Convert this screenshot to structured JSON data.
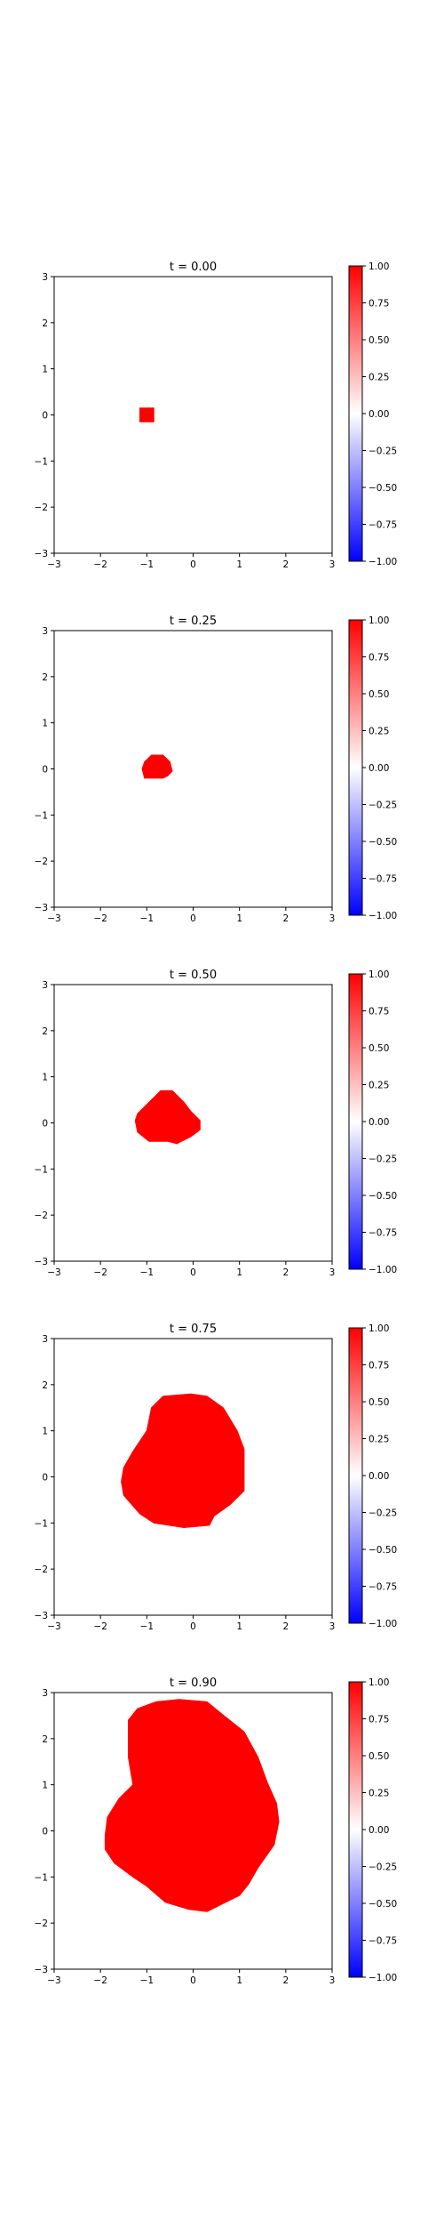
{
  "colors": {
    "positive": "#ff0000",
    "neutral": "#ffffff",
    "negative": "#0000ff",
    "axis": "#000000",
    "background": "#ffffff"
  },
  "chart_data": [
    {
      "type": "heatmap",
      "title": "t = 0.00",
      "xlim": [
        -3,
        3
      ],
      "ylim": [
        -3,
        3
      ],
      "xticks": [
        -3,
        -2,
        -1,
        0,
        1,
        2,
        3
      ],
      "yticks": [
        -3,
        -2,
        -1,
        0,
        1,
        2,
        3
      ],
      "colormap": "bwr",
      "colorbar_range": [
        -1,
        1
      ],
      "colorbar_ticks": [
        "1.00",
        "0.75",
        "0.50",
        "0.25",
        "0.00",
        "−0.25",
        "−0.50",
        "−0.75",
        "−1.00"
      ],
      "grid": false,
      "regions": [
        {
          "value": 1.0,
          "boundary": [
            [
              -1.15,
              0.15
            ],
            [
              -0.85,
              0.15
            ],
            [
              -0.85,
              -0.15
            ],
            [
              -1.15,
              -0.15
            ]
          ]
        }
      ]
    },
    {
      "type": "heatmap",
      "title": "t = 0.25",
      "xlim": [
        -3,
        3
      ],
      "ylim": [
        -3,
        3
      ],
      "xticks": [
        -3,
        -2,
        -1,
        0,
        1,
        2,
        3
      ],
      "yticks": [
        -3,
        -2,
        -1,
        0,
        1,
        2,
        3
      ],
      "colormap": "bwr",
      "colorbar_range": [
        -1,
        1
      ],
      "colorbar_ticks": [
        "1.00",
        "0.75",
        "0.50",
        "0.25",
        "0.00",
        "−0.25",
        "−0.50",
        "−0.75",
        "−1.00"
      ],
      "grid": false,
      "regions": [
        {
          "value": 1.0,
          "boundary": [
            [
              -1.05,
              0.15
            ],
            [
              -0.9,
              0.3
            ],
            [
              -0.65,
              0.3
            ],
            [
              -0.5,
              0.15
            ],
            [
              -0.45,
              -0.05
            ],
            [
              -0.55,
              -0.15
            ],
            [
              -0.65,
              -0.2
            ],
            [
              -1.05,
              -0.2
            ],
            [
              -1.1,
              0.0
            ]
          ]
        }
      ]
    },
    {
      "type": "heatmap",
      "title": "t = 0.50",
      "xlim": [
        -3,
        3
      ],
      "ylim": [
        -3,
        3
      ],
      "xticks": [
        -3,
        -2,
        -1,
        0,
        1,
        2,
        3
      ],
      "yticks": [
        -3,
        -2,
        -1,
        0,
        1,
        2,
        3
      ],
      "colormap": "bwr",
      "colorbar_range": [
        -1,
        1
      ],
      "colorbar_ticks": [
        "1.00",
        "0.75",
        "0.50",
        "0.25",
        "0.00",
        "−0.25",
        "−0.50",
        "−0.75",
        "−1.00"
      ],
      "grid": false,
      "regions": [
        {
          "value": 1.0,
          "boundary": [
            [
              -1.2,
              0.2
            ],
            [
              -0.95,
              0.45
            ],
            [
              -0.7,
              0.7
            ],
            [
              -0.45,
              0.7
            ],
            [
              -0.2,
              0.45
            ],
            [
              -0.05,
              0.25
            ],
            [
              0.15,
              0.05
            ],
            [
              0.15,
              -0.15
            ],
            [
              -0.05,
              -0.3
            ],
            [
              -0.35,
              -0.45
            ],
            [
              -0.55,
              -0.4
            ],
            [
              -0.95,
              -0.4
            ],
            [
              -1.2,
              -0.2
            ],
            [
              -1.25,
              0.05
            ]
          ]
        }
      ]
    },
    {
      "type": "heatmap",
      "title": "t = 0.75",
      "xlim": [
        -3,
        3
      ],
      "ylim": [
        -3,
        3
      ],
      "xticks": [
        -3,
        -2,
        -1,
        0,
        1,
        2,
        3
      ],
      "yticks": [
        -3,
        -2,
        -1,
        0,
        1,
        2,
        3
      ],
      "colormap": "bwr",
      "colorbar_range": [
        -1,
        1
      ],
      "colorbar_ticks": [
        "1.00",
        "0.75",
        "0.50",
        "0.25",
        "0.00",
        "−0.25",
        "−0.50",
        "−0.75",
        "−1.00"
      ],
      "grid": false,
      "regions": [
        {
          "value": 1.0,
          "boundary": [
            [
              -1.5,
              0.2
            ],
            [
              -1.3,
              0.55
            ],
            [
              -1.0,
              1.0
            ],
            [
              -0.9,
              1.5
            ],
            [
              -0.65,
              1.75
            ],
            [
              -0.05,
              1.8
            ],
            [
              0.3,
              1.75
            ],
            [
              0.65,
              1.5
            ],
            [
              0.95,
              1.0
            ],
            [
              1.1,
              0.6
            ],
            [
              1.1,
              -0.3
            ],
            [
              0.8,
              -0.6
            ],
            [
              0.45,
              -0.85
            ],
            [
              0.35,
              -1.05
            ],
            [
              -0.2,
              -1.1
            ],
            [
              -0.85,
              -1.0
            ],
            [
              -1.15,
              -0.8
            ],
            [
              -1.5,
              -0.4
            ],
            [
              -1.55,
              -0.1
            ]
          ]
        }
      ]
    },
    {
      "type": "heatmap",
      "title": "t = 0.90",
      "xlim": [
        -3,
        3
      ],
      "ylim": [
        -3,
        3
      ],
      "xticks": [
        -3,
        -2,
        -1,
        0,
        1,
        2,
        3
      ],
      "yticks": [
        -3,
        -2,
        -1,
        0,
        1,
        2,
        3
      ],
      "colormap": "bwr",
      "colorbar_range": [
        -1,
        1
      ],
      "colorbar_ticks": [
        "1.00",
        "0.75",
        "0.50",
        "0.25",
        "0.00",
        "−0.25",
        "−0.50",
        "−0.75",
        "−1.00"
      ],
      "grid": false,
      "regions": [
        {
          "value": 1.0,
          "boundary": [
            [
              -1.9,
              -0.1
            ],
            [
              -1.85,
              0.3
            ],
            [
              -1.6,
              0.7
            ],
            [
              -1.3,
              1.0
            ],
            [
              -1.4,
              1.6
            ],
            [
              -1.4,
              2.4
            ],
            [
              -1.2,
              2.65
            ],
            [
              -0.8,
              2.8
            ],
            [
              -0.3,
              2.85
            ],
            [
              0.3,
              2.8
            ],
            [
              0.6,
              2.55
            ],
            [
              1.1,
              2.15
            ],
            [
              1.4,
              1.6
            ],
            [
              1.6,
              1.05
            ],
            [
              1.8,
              0.6
            ],
            [
              1.85,
              0.2
            ],
            [
              1.75,
              -0.3
            ],
            [
              1.4,
              -0.8
            ],
            [
              1.2,
              -1.15
            ],
            [
              1.0,
              -1.4
            ],
            [
              0.5,
              -1.65
            ],
            [
              0.3,
              -1.75
            ],
            [
              -0.1,
              -1.7
            ],
            [
              -0.6,
              -1.55
            ],
            [
              -1.0,
              -1.2
            ],
            [
              -1.3,
              -1.0
            ],
            [
              -1.7,
              -0.7
            ],
            [
              -1.9,
              -0.4
            ]
          ]
        }
      ]
    }
  ]
}
